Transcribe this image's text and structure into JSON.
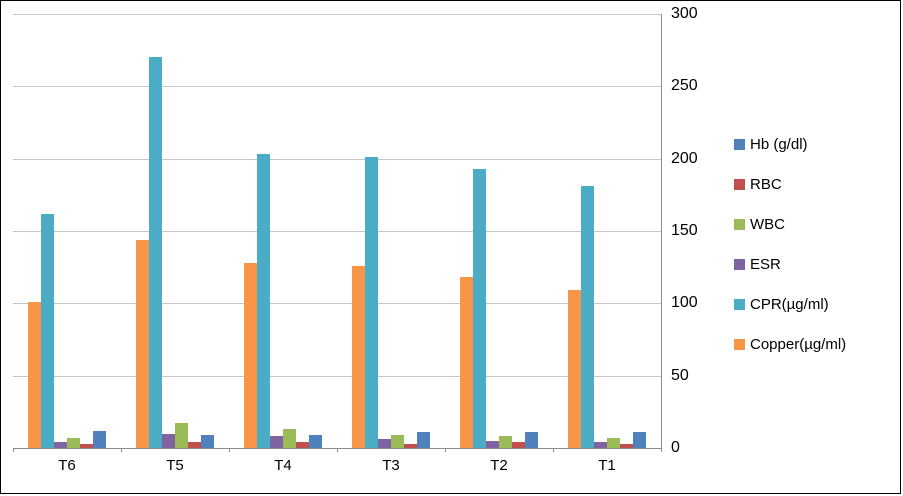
{
  "chart_data": {
    "type": "bar",
    "title": "",
    "xlabel": "",
    "ylabel": "",
    "categories": [
      "T6",
      "T5",
      "T4",
      "T3",
      "T2",
      "T1"
    ],
    "series": [
      {
        "name": "Hb (g/dl)",
        "color": "#4F81BD",
        "values": [
          12,
          9,
          9,
          11,
          11,
          11
        ]
      },
      {
        "name": "RBC",
        "color": "#C0504D",
        "values": [
          3,
          4,
          4,
          3,
          4,
          3
        ]
      },
      {
        "name": "WBC",
        "color": "#9BBB59",
        "values": [
          7,
          17,
          13,
          9,
          8,
          7
        ]
      },
      {
        "name": "ESR",
        "color": "#8064A2",
        "values": [
          4,
          10,
          8,
          6,
          5,
          4
        ]
      },
      {
        "name": "CPR(µg/ml)",
        "color": "#4BACC6",
        "values": [
          162,
          270,
          203,
          201,
          193,
          181
        ]
      },
      {
        "name": "Copper(µg/ml)",
        "color": "#F79646",
        "values": [
          101,
          144,
          128,
          126,
          118,
          109
        ]
      }
    ],
    "bar_order_within_group": [
      "Copper(µg/ml)",
      "CPR(µg/ml)",
      "ESR",
      "WBC",
      "RBC",
      "Hb (g/dl)"
    ],
    "ylim": [
      0,
      300
    ],
    "ytick_interval": 50,
    "yticks": [
      0,
      50,
      100,
      150,
      200,
      250,
      300
    ],
    "ytick_labels": [
      "0",
      "50",
      "100",
      "150",
      "200",
      "250",
      "300"
    ],
    "grid": true,
    "legend_position": "right",
    "value_axis_side": "right",
    "colors": {
      "gridline": "#c6c6c6",
      "axis": "#8c8c8c",
      "background": "#ffffff",
      "border": "#000000"
    }
  }
}
